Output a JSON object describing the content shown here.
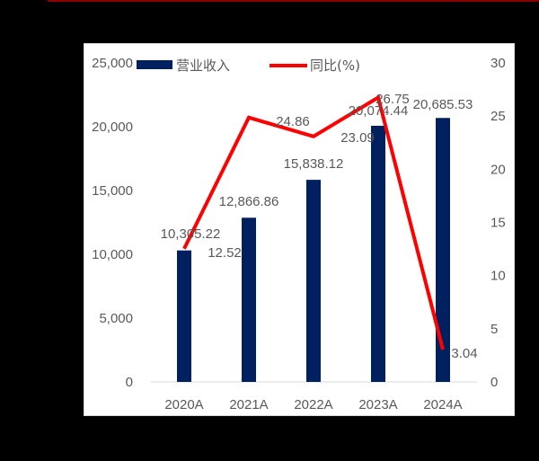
{
  "chart_data": {
    "type": "bar+line",
    "title": "",
    "categories": [
      "2020A",
      "2021A",
      "2022A",
      "2023A",
      "2024A"
    ],
    "series": [
      {
        "name": "营业收入",
        "type": "bar",
        "axis": "left",
        "color": "#002060",
        "values": [
          10305.22,
          12866.86,
          15838.12,
          20074.44,
          20685.53
        ],
        "labels": [
          "10,305.22",
          "12,866.86",
          "15,838.12",
          "20,074.44",
          "20,685.53"
        ]
      },
      {
        "name": "同比(%)",
        "type": "line",
        "axis": "right",
        "color": "#FF0000",
        "values": [
          12.52,
          24.86,
          23.09,
          26.75,
          3.04
        ],
        "labels": [
          "12.52",
          "24.86",
          "23.09",
          "26.75",
          "3.04"
        ]
      }
    ],
    "left_axis": {
      "ylim": [
        0,
        25000
      ],
      "ticks": [
        "0",
        "5,000",
        "10,000",
        "15,000",
        "20,000",
        "25,000"
      ]
    },
    "right_axis": {
      "ylim": [
        0,
        30
      ],
      "ticks": [
        "0",
        "5",
        "10",
        "15",
        "20",
        "25",
        "30"
      ]
    },
    "xlabel": "",
    "ylabel": "",
    "grid": false,
    "legend_position": "top"
  },
  "legend": {
    "bar_label": "营业收入",
    "line_label": "同比(%)"
  }
}
